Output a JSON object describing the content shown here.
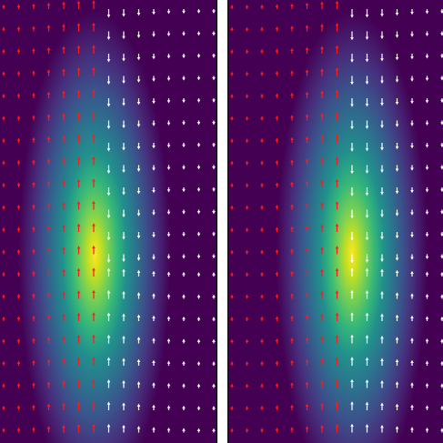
{
  "panels": [
    {
      "id": "left",
      "field": "viridis-gaussian",
      "arrows": "velocity-field"
    },
    {
      "id": "right",
      "field": "viridis-gaussian",
      "arrows": "velocity-field"
    }
  ],
  "colors": {
    "background_low": "#440154",
    "mid": "#21918c",
    "high": "#fde725",
    "arrow_left_side": "#ff1a1a",
    "arrow_right_side": "#ffffff",
    "separator": "#ffffff"
  }
}
